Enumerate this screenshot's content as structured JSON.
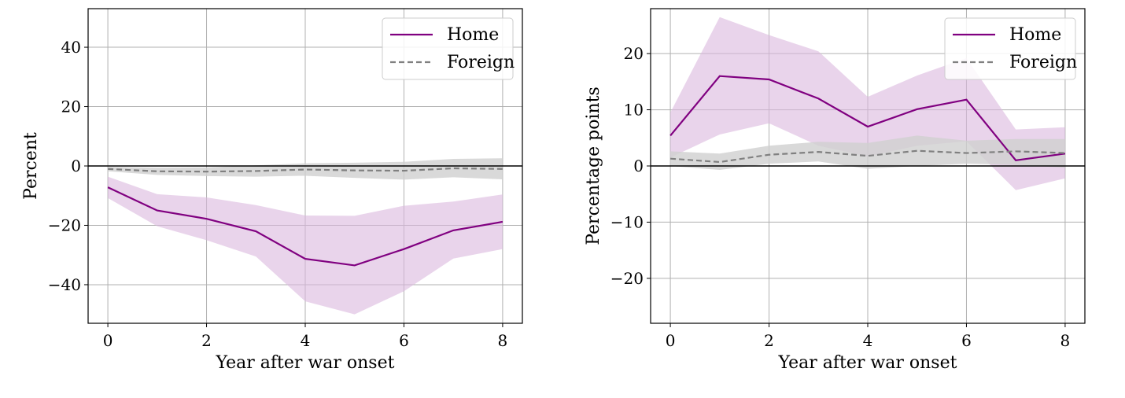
{
  "chart_data": [
    {
      "type": "line",
      "xlabel": "Year after war onset",
      "ylabel": "Percent",
      "xlim": [
        -0.4,
        8.4
      ],
      "ylim": [
        -53,
        53
      ],
      "xticks": [
        0,
        2,
        4,
        6,
        8
      ],
      "yticks": [
        -40,
        -20,
        0,
        20,
        40
      ],
      "grid": true,
      "zero_line": true,
      "legend": "top-right",
      "x": [
        0,
        1,
        2,
        3,
        4,
        5,
        6,
        7,
        8
      ],
      "series": [
        {
          "name": "Home",
          "color": "#800080",
          "band_color": "#dbb8dd",
          "style": "solid",
          "values": [
            -7.2,
            -15,
            -17.8,
            -22,
            -31.3,
            -33.5,
            -28,
            -21.7,
            -18.8
          ],
          "lower": [
            -10.8,
            -20.3,
            -25,
            -30.5,
            -45.6,
            -50,
            -42.2,
            -31.2,
            -28
          ],
          "upper": [
            -3.6,
            -9.5,
            -10.6,
            -13.2,
            -16.7,
            -16.8,
            -13.4,
            -12,
            -9.6
          ]
        },
        {
          "name": "Foreign",
          "color": "#808080",
          "band_color": "#cfcfcf",
          "style": "dashed",
          "values": [
            -1,
            -1.8,
            -1.9,
            -1.7,
            -1.2,
            -1.5,
            -1.6,
            -0.8,
            -1
          ],
          "lower": [
            -1.8,
            -3,
            -3.4,
            -3.6,
            -3.3,
            -4,
            -4.6,
            -3.8,
            -4.5
          ],
          "upper": [
            -0.3,
            -0.6,
            -0.5,
            0.2,
            0.9,
            1.1,
            1.4,
            2.4,
            2.6
          ]
        }
      ]
    },
    {
      "type": "line",
      "xlabel": "Year after war onset",
      "ylabel": "Percentage points",
      "xlim": [
        -0.4,
        8.4
      ],
      "ylim": [
        -28,
        28
      ],
      "xticks": [
        0,
        2,
        4,
        6,
        8
      ],
      "yticks": [
        -20,
        -10,
        0,
        10,
        20
      ],
      "grid": true,
      "zero_line": true,
      "legend": "top-right",
      "x": [
        0,
        1,
        2,
        3,
        4,
        5,
        6,
        7,
        8
      ],
      "series": [
        {
          "name": "Home",
          "color": "#800080",
          "band_color": "#dbb8dd",
          "style": "solid",
          "values": [
            5.4,
            16,
            15.4,
            12,
            7,
            10.1,
            11.8,
            1,
            2.2
          ],
          "lower": [
            1.5,
            5.6,
            7.6,
            3.6,
            1.7,
            3.6,
            4.4,
            -4.3,
            -2.2
          ],
          "upper": [
            9.5,
            26.5,
            23.3,
            20.4,
            12.3,
            16.1,
            19.2,
            6.5,
            6.9
          ]
        },
        {
          "name": "Foreign",
          "color": "#808080",
          "band_color": "#cfcfcf",
          "style": "dashed",
          "values": [
            1.3,
            0.7,
            2,
            2.5,
            1.8,
            2.7,
            2.3,
            2.6,
            2.3
          ],
          "lower": [
            0,
            -0.7,
            0.4,
            0.8,
            -0.5,
            0,
            0.4,
            0.2,
            -0.3
          ],
          "upper": [
            2.6,
            2.2,
            3.6,
            4.3,
            4.1,
            5.4,
            4.5,
            4.8,
            4.8
          ]
        }
      ]
    }
  ]
}
